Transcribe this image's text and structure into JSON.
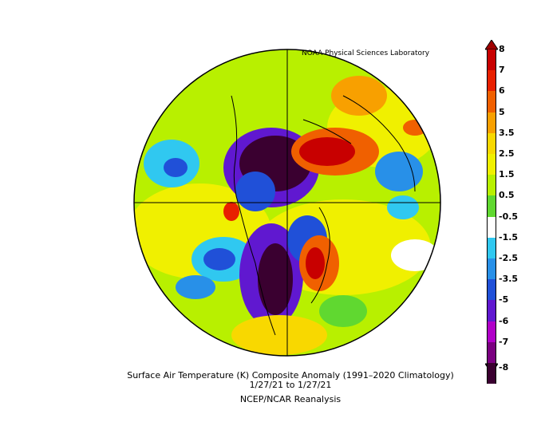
{
  "credit": "NOAA Physical Sciences Laboratory",
  "title_line": "Surface Air Temperature (K) Composite Anomaly (1991–2020 Climatology)",
  "date_line": "1/27/21  to 1/27/21",
  "source_line": "NCEP/NCAR Reanalysis",
  "colorbar": {
    "labels": [
      "8",
      "7",
      "6",
      "5",
      "3.5",
      "2.5",
      "1.5",
      "0.5",
      "-0.5",
      "-1.5",
      "-2.5",
      "-3.5",
      "-5",
      "-6",
      "-7",
      "-8"
    ],
    "colors": [
      "#c80000",
      "#e82000",
      "#f06000",
      "#f8a000",
      "#f8d800",
      "#f0f000",
      "#b8f000",
      "#60d830",
      "#ffffff",
      "#30c8f0",
      "#2890e8",
      "#2050d8",
      "#6018d0",
      "#b000c8",
      "#7a0080",
      "#3a0030"
    ]
  }
}
